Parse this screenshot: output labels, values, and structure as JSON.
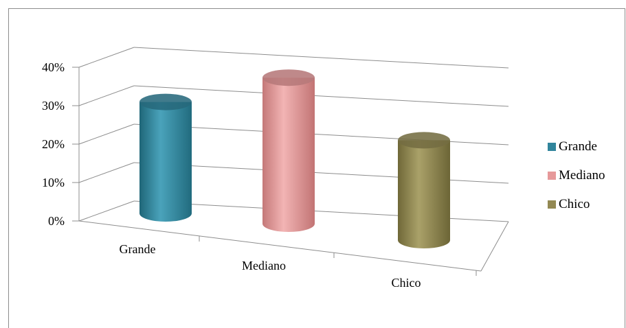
{
  "chart_data": {
    "type": "bar",
    "style": "3d-cylinder",
    "categories": [
      "Grande",
      "Mediano",
      "Chico"
    ],
    "values": [
      29,
      38,
      26
    ],
    "colors": [
      "#31859c",
      "#e6999a",
      "#938953"
    ],
    "yticks": [
      "0%",
      "10%",
      "20%",
      "30%",
      "40%"
    ],
    "ylim": [
      0,
      40
    ],
    "grid": true,
    "legend_position": "right",
    "legend": [
      "Grande",
      "Mediano",
      "Chico"
    ]
  }
}
